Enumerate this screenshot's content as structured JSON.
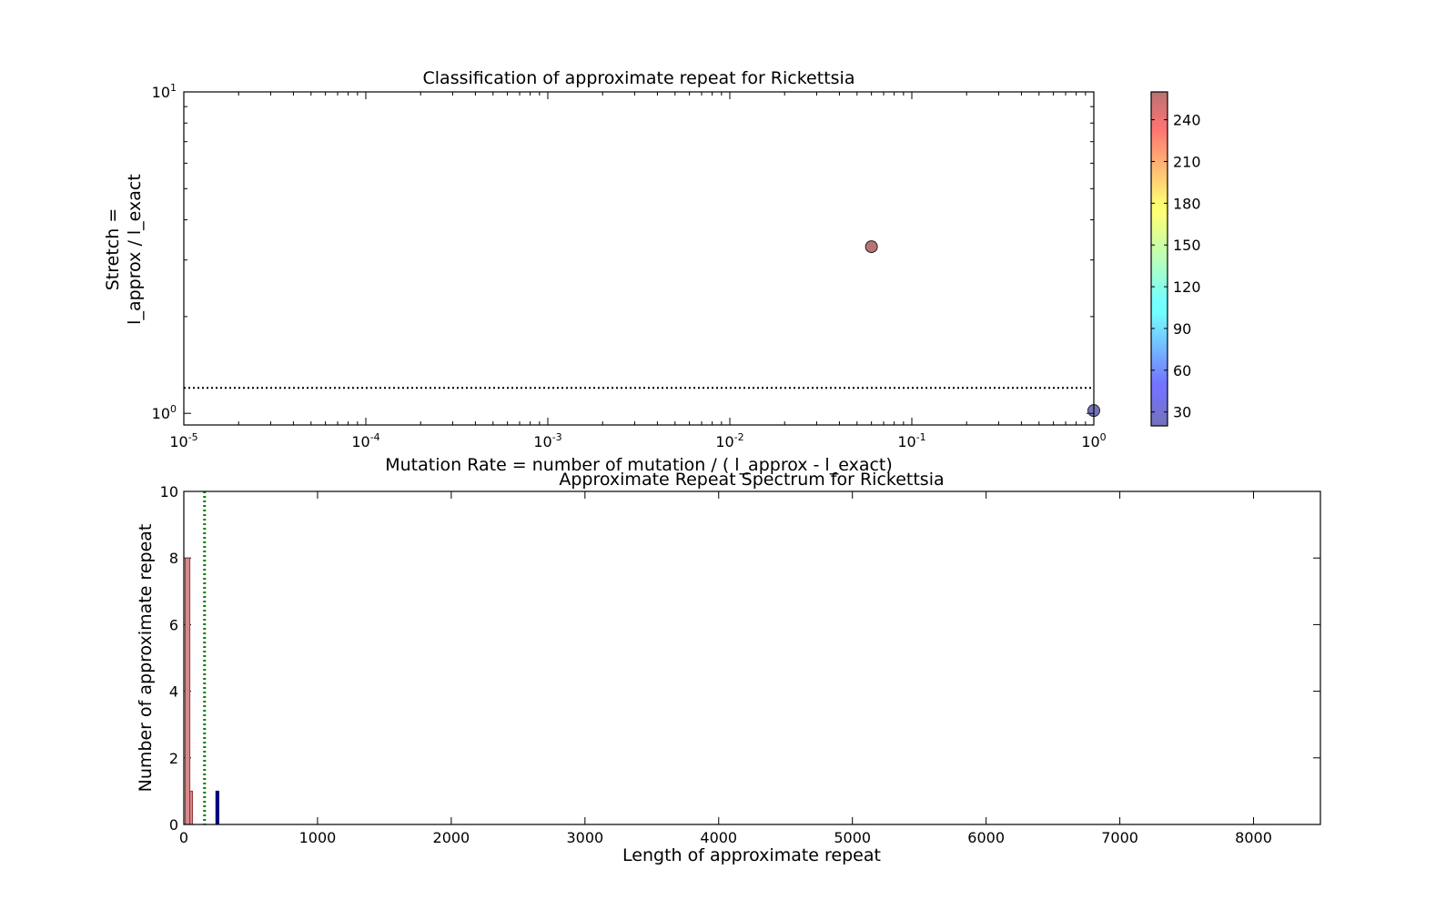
{
  "chart_data": [
    {
      "type": "scatter",
      "title": "Classification of approximate repeat for Rickettsia",
      "xlabel": "Mutation Rate = number of mutation / ( l_approx - l_exact)",
      "ylabel_line1": "Stretch =",
      "ylabel_line2": "l_approx / l_exact",
      "x_scale": "log",
      "y_scale": "log",
      "xlim": [
        1e-05,
        1
      ],
      "ylim": [
        0.92,
        10
      ],
      "x_ticks": [
        {
          "value": 1e-05,
          "base": "10",
          "exp": "-5"
        },
        {
          "value": 0.0001,
          "base": "10",
          "exp": "-4"
        },
        {
          "value": 0.001,
          "base": "10",
          "exp": "-3"
        },
        {
          "value": 0.01,
          "base": "10",
          "exp": "-2"
        },
        {
          "value": 0.1,
          "base": "10",
          "exp": "-1"
        },
        {
          "value": 1,
          "base": "10",
          "exp": "0"
        }
      ],
      "y_ticks": [
        {
          "value": 1,
          "base": "10",
          "exp": "0"
        },
        {
          "value": 10,
          "base": "10",
          "exp": "1"
        }
      ],
      "threshold_line": {
        "y": 1.2,
        "style": "dotted",
        "color": "#000000"
      },
      "points": [
        {
          "x": 0.06,
          "y": 3.3,
          "c": 260
        },
        {
          "x": 1.0,
          "y": 1.02,
          "c": 20
        }
      ],
      "colorbar": {
        "colormap": "jet",
        "alpha": 0.55,
        "min": 20,
        "max": 260,
        "ticks": [
          "30",
          "60",
          "90",
          "120",
          "150",
          "180",
          "210",
          "240"
        ]
      },
      "grid": false,
      "legend": "none"
    },
    {
      "type": "bar",
      "title": "Approximate Repeat Spectrum for Rickettsia",
      "xlabel": "Length of approximate repeat",
      "ylabel": "Number of approximate repeat",
      "xlim": [
        0,
        8500
      ],
      "ylim": [
        0,
        10
      ],
      "x_ticks": [
        "0",
        "1000",
        "2000",
        "3000",
        "4000",
        "5000",
        "6000",
        "7000",
        "8000"
      ],
      "y_ticks": [
        "0",
        "2",
        "4",
        "6",
        "8",
        "10"
      ],
      "bars": [
        {
          "x0": 10,
          "x1": 45,
          "value": 8,
          "color": "#d9888a",
          "edge": "#8b3a3a"
        },
        {
          "x0": 45,
          "x1": 65,
          "value": 1,
          "color": "#d9888a",
          "edge": "#8b3a3a"
        },
        {
          "x0": 240,
          "x1": 262,
          "value": 1,
          "color": "#00007f",
          "edge": "#00007f"
        }
      ],
      "vline": {
        "x": 155,
        "style": "dotted",
        "color": "#007f00"
      },
      "grid": false,
      "legend": "none"
    }
  ]
}
